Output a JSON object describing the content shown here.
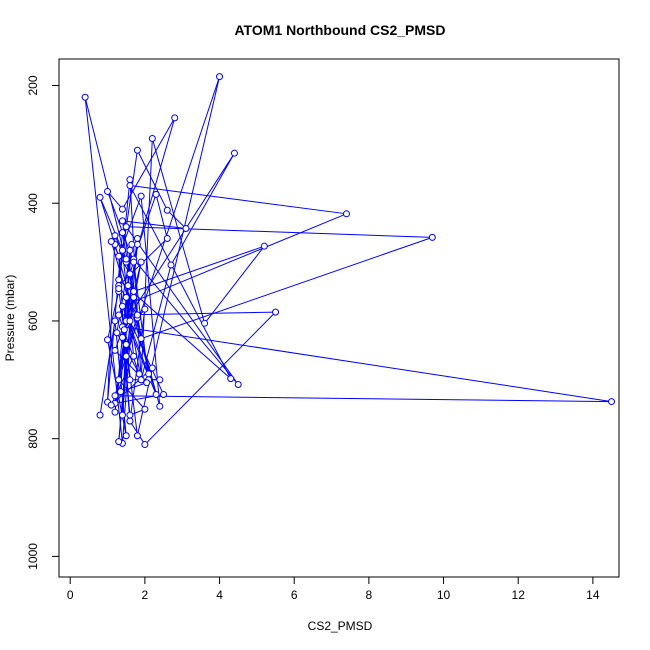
{
  "chart_data": {
    "type": "line",
    "title": "ATOM1 Northbound CS2_PMSD",
    "xlabel": "CS2_PMSD",
    "ylabel": "Pressure (mbar)",
    "xlim": [
      -0.3,
      14.7
    ],
    "ylim": [
      1035,
      155
    ],
    "y_reversed": true,
    "xticks": [
      0,
      2,
      4,
      6,
      8,
      10,
      12,
      14
    ],
    "yticks": [
      200,
      400,
      600,
      800,
      1000
    ],
    "grid": false,
    "legend": "none",
    "marker": "open-circle",
    "color": "#0000ff",
    "x": [
      0.8,
      1.2,
      1.5,
      1.0,
      1.3,
      1.6,
      1.9,
      2.2,
      3.6,
      5.2,
      1.7,
      1.4,
      0.4,
      1.5,
      1.2,
      1.0,
      1.4,
      1.8,
      2.0,
      1.6,
      1.3,
      1.9,
      2.4,
      1.2,
      0.8,
      1.5,
      2.1,
      1.4,
      7.4,
      1.6,
      4.3,
      1.3,
      1.8,
      2.6,
      3.1,
      1.4,
      1.9,
      9.7,
      1.5,
      4.5,
      1.7,
      2.3,
      2.6,
      1.3,
      1.8,
      1.2,
      14.5,
      1.4,
      1.6,
      2.0,
      5.5,
      1.3,
      1.9,
      2.7,
      4.4,
      1.5,
      2.3,
      1.1,
      1.6,
      2.8,
      1.4,
      1.0,
      1.7,
      2.1,
      4.0,
      1.5,
      1.3,
      1.8,
      1.2,
      2.5,
      1.6,
      1.9,
      1.4,
      1.6,
      2.0,
      1.3,
      1.5,
      1.8,
      2.2,
      1.1,
      1.7,
      1.4,
      1.3,
      1.6,
      2.4,
      1.9,
      1.5,
      1.2,
      1.8,
      1.4,
      1.6,
      1.35,
      2.05,
      1.2,
      1.7,
      1.45,
      1.55,
      1.65,
      1.25,
      1.85
    ],
    "y": [
      760,
      600,
      795,
      632,
      550,
      360,
      700,
      290,
      604,
      473,
      550,
      808,
      220,
      500,
      455,
      738,
      450,
      595,
      580,
      770,
      490,
      388,
      745,
      470,
      390,
      495,
      690,
      575,
      418,
      370,
      698,
      530,
      310,
      412,
      443,
      430,
      630,
      458,
      440,
      708,
      495,
      385,
      460,
      540,
      590,
      727,
      737,
      610,
      770,
      810,
      585,
      590,
      700,
      505,
      315,
      600,
      725,
      465,
      520,
      255,
      410,
      380,
      500,
      700,
      185,
      660,
      805,
      470,
      740,
      725,
      600,
      500,
      628,
      760,
      750,
      700,
      640,
      795,
      680,
      743,
      660,
      480,
      545,
      700,
      700,
      700,
      560,
      755,
      460,
      760,
      480,
      720,
      705,
      650,
      560,
      615,
      540,
      470,
      620,
      690
    ]
  }
}
